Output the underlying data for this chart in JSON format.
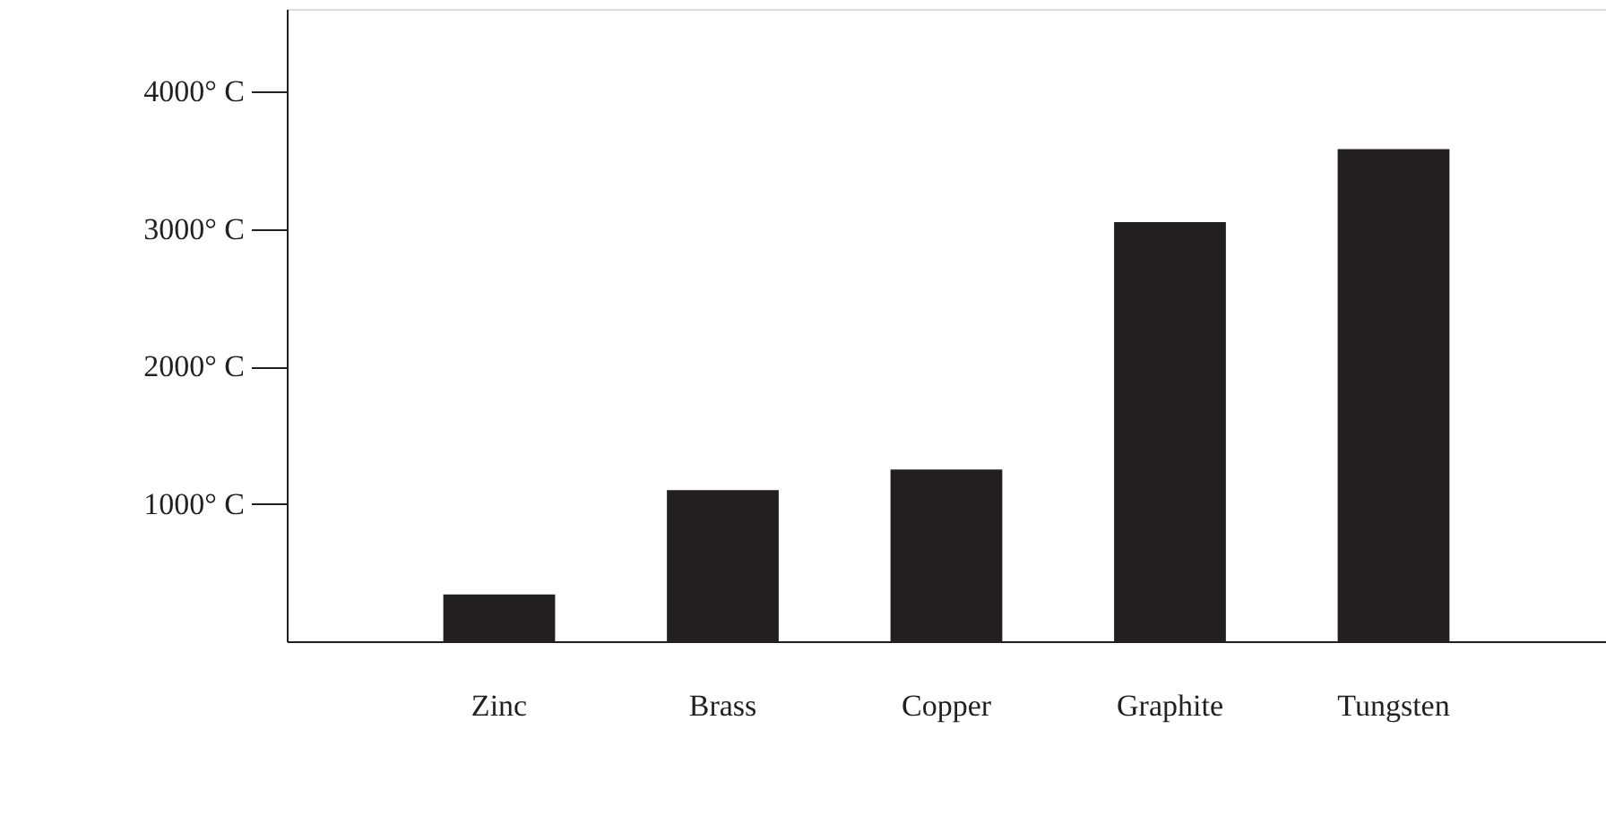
{
  "chart_data": {
    "type": "bar",
    "categories": [
      "Zinc",
      "Brass",
      "Copper",
      "Graphite",
      "Tungsten"
    ],
    "values": [
      340,
      1100,
      1250,
      3050,
      3580
    ],
    "color": "#231f20",
    "ylim": [
      0,
      4600
    ],
    "yticks": [
      {
        "value": 1000,
        "label": "1000° C"
      },
      {
        "value": 2000,
        "label": "2000° C"
      },
      {
        "value": 3000,
        "label": "3000° C"
      },
      {
        "value": 4000,
        "label": "4000° C"
      }
    ],
    "grid": false
  }
}
